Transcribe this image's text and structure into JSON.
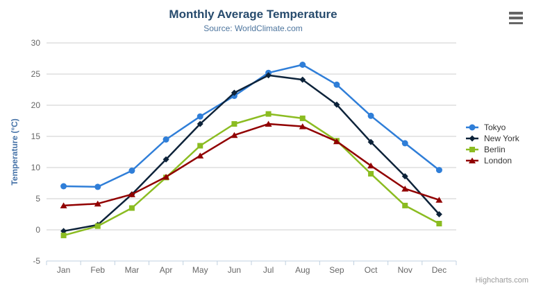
{
  "credit": "Highcharts.com",
  "header": {
    "export_menu_icon": "hamburger-icon"
  },
  "chart_data": {
    "type": "line",
    "title": "Monthly Average Temperature",
    "subtitle": "Source: WorldClimate.com",
    "xlabel": "",
    "ylabel": "Temperature (°C)",
    "ylim": [
      -5,
      30
    ],
    "ytick_step": 5,
    "grid": true,
    "legend_position": "right",
    "categories": [
      "Jan",
      "Feb",
      "Mar",
      "Apr",
      "May",
      "Jun",
      "Jul",
      "Aug",
      "Sep",
      "Oct",
      "Nov",
      "Dec"
    ],
    "series": [
      {
        "name": "Tokyo",
        "color": "#2f7ed8",
        "marker": "circle",
        "values": [
          7.0,
          6.9,
          9.5,
          14.5,
          18.2,
          21.5,
          25.2,
          26.5,
          23.3,
          18.3,
          13.9,
          9.6
        ]
      },
      {
        "name": "New York",
        "color": "#0d233a",
        "marker": "diamond",
        "values": [
          -0.2,
          0.8,
          5.7,
          11.3,
          17.0,
          22.0,
          24.8,
          24.1,
          20.1,
          14.1,
          8.6,
          2.5
        ]
      },
      {
        "name": "Berlin",
        "color": "#8bbc21",
        "marker": "square",
        "values": [
          -0.9,
          0.6,
          3.5,
          8.4,
          13.5,
          17.0,
          18.6,
          17.9,
          14.3,
          9.0,
          3.9,
          1.0
        ]
      },
      {
        "name": "London",
        "color": "#910000",
        "marker": "triangle",
        "values": [
          3.9,
          4.2,
          5.7,
          8.5,
          11.9,
          15.2,
          17.0,
          16.6,
          14.2,
          10.3,
          6.6,
          4.8
        ]
      }
    ],
    "colors": {
      "title": "#274b6d",
      "subtitle": "#4d759e",
      "axis_title": "#4572a7",
      "axis_labels": "#666666",
      "gridline": "#cccccc",
      "axis_line": "#c0d0e0",
      "legend_text": "#333333",
      "credit": "#999999"
    }
  }
}
